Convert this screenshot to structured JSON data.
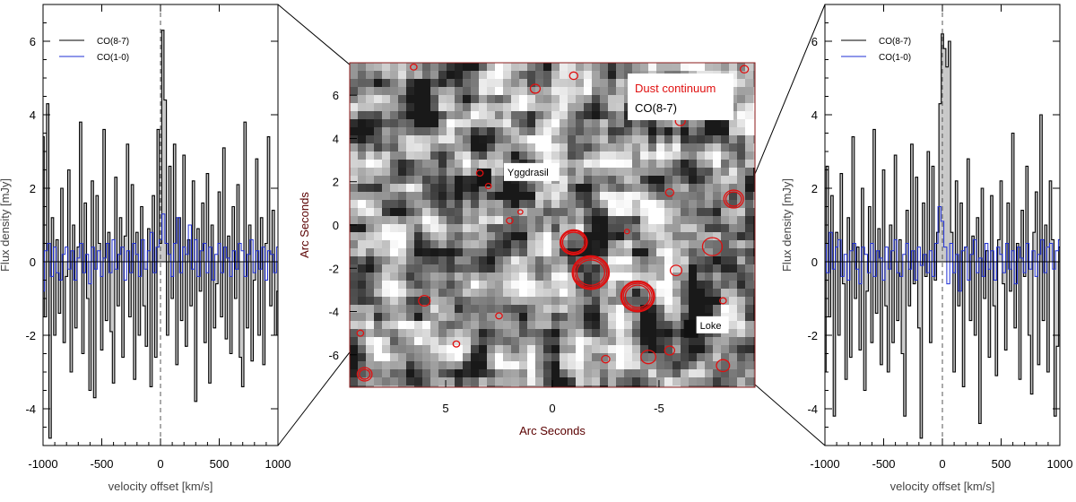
{
  "colors": {
    "co87": "#000000",
    "co10": "#1f2fd6",
    "fill": "#c8c8c8",
    "contour": "#e01010",
    "map_frame": "#8b1a1a",
    "dust_label": "#e01010"
  },
  "chart_data": [
    {
      "type": "line",
      "panel": "left-spectrum",
      "xlabel": "velocity offset [km/s]",
      "ylabel": "Flux density [mJy]",
      "xlim": [
        -1000,
        1000
      ],
      "ylim": [
        -5,
        7
      ],
      "xticks": [
        -1000,
        -500,
        0,
        500,
        1000
      ],
      "yticks": [
        -4,
        -2,
        0,
        2,
        4,
        6
      ],
      "legend_position": "top-left",
      "series": [
        {
          "name": "CO(8-7)",
          "x": [
            -1000,
            -980,
            -960,
            -940,
            -920,
            -900,
            -880,
            -860,
            -840,
            -820,
            -800,
            -780,
            -760,
            -740,
            -720,
            -700,
            -680,
            -660,
            -640,
            -620,
            -600,
            -580,
            -560,
            -540,
            -520,
            -500,
            -480,
            -460,
            -440,
            -420,
            -400,
            -380,
            -360,
            -340,
            -320,
            -300,
            -280,
            -260,
            -240,
            -220,
            -200,
            -180,
            -160,
            -140,
            -120,
            -100,
            -80,
            -60,
            -40,
            -20,
            0,
            20,
            40,
            60,
            80,
            100,
            120,
            140,
            160,
            180,
            200,
            220,
            240,
            260,
            280,
            300,
            320,
            340,
            360,
            380,
            400,
            420,
            440,
            460,
            480,
            500,
            520,
            540,
            560,
            580,
            600,
            620,
            640,
            660,
            680,
            700,
            720,
            740,
            760,
            780,
            800,
            820,
            840,
            860,
            880,
            900,
            920,
            940,
            960,
            980,
            1000
          ],
          "values": [
            3.4,
            -1.5,
            4.3,
            -4.8,
            1.2,
            -2.0,
            0.6,
            -1.4,
            2.0,
            -2.2,
            -0.4,
            2.5,
            -3.0,
            1.0,
            -1.8,
            0.4,
            3.8,
            -2.5,
            1.6,
            -1.0,
            -3.5,
            2.2,
            -3.7,
            1.8,
            0.5,
            -2.4,
            3.6,
            -1.6,
            0.8,
            -1.9,
            -3.3,
            2.3,
            -1.2,
            1.2,
            -2.6,
            0.7,
            3.2,
            -1.5,
            2.1,
            -3.2,
            0.8,
            -2.0,
            1.5,
            -1.2,
            -2.3,
            0.9,
            -3.4,
            1.8,
            -2.6,
            3.6,
            0.5,
            6.3,
            4.4,
            -2.0,
            2.6,
            -1.0,
            3.2,
            -2.8,
            1.2,
            -1.6,
            2.9,
            -2.3,
            0.6,
            -1.2,
            2.2,
            -3.8,
            0.9,
            -0.8,
            1.6,
            -2.2,
            2.4,
            -3.3,
            1.0,
            -1.8,
            -0.6,
            1.9,
            -1.5,
            3.1,
            -2.1,
            0.7,
            -2.5,
            1.5,
            -1.0,
            2.1,
            -2.6,
            -3.4,
            3.8,
            -1.8,
            1.0,
            -2.7,
            -0.5,
            2.8,
            -2.0,
            1.2,
            -2.8,
            0.5,
            3.4,
            -1.2,
            1.4,
            -2.0,
            -0.8
          ]
        },
        {
          "name": "CO(1-0)",
          "x": [
            -1000,
            -975,
            -950,
            -925,
            -900,
            -875,
            -850,
            -825,
            -800,
            -775,
            -750,
            -725,
            -700,
            -675,
            -650,
            -625,
            -600,
            -575,
            -550,
            -525,
            -500,
            -475,
            -450,
            -425,
            -400,
            -375,
            -350,
            -325,
            -300,
            -275,
            -250,
            -225,
            -200,
            -175,
            -150,
            -125,
            -100,
            -75,
            -50,
            -25,
            0,
            25,
            50,
            75,
            100,
            125,
            150,
            175,
            200,
            225,
            250,
            275,
            300,
            325,
            350,
            375,
            400,
            425,
            450,
            475,
            500,
            525,
            550,
            575,
            600,
            625,
            650,
            675,
            700,
            725,
            750,
            775,
            800,
            825,
            850,
            875,
            900,
            925,
            950,
            975,
            1000
          ],
          "values": [
            -0.8,
            0.3,
            0.5,
            -0.4,
            0.4,
            -0.3,
            -0.5,
            0.2,
            0.4,
            -0.2,
            0.3,
            -0.5,
            0.1,
            0.5,
            -0.3,
            0.2,
            -0.6,
            0.4,
            -0.2,
            0.3,
            -0.4,
            0.1,
            0.5,
            -0.3,
            0.6,
            -0.2,
            0.2,
            0.4,
            -0.5,
            0.3,
            -0.3,
            0.5,
            0.2,
            -0.4,
            0.6,
            -0.2,
            0.3,
            0.8,
            -0.3,
            0.4,
            0.6,
            1.3,
            0.5,
            0.2,
            -0.4,
            0.5,
            1.2,
            -0.3,
            0.4,
            0.2,
            1.0,
            -0.2,
            0.6,
            -0.4,
            0.3,
            0.5,
            -0.3,
            0.4,
            -0.5,
            0.2,
            0.5,
            -0.3,
            0.4,
            0.1,
            -0.4,
            0.3,
            -0.2,
            0.5,
            0.3,
            -0.4,
            0.2,
            0.6,
            -0.3,
            0.3,
            -0.2,
            0.4,
            -0.5,
            0.3,
            0.2,
            -0.3,
            0.4
          ]
        }
      ]
    },
    {
      "type": "heatmap",
      "panel": "center-map",
      "xlabel": "Arc Seconds",
      "ylabel": "Arc Seconds",
      "xlim": [
        9.5,
        -9.5
      ],
      "ylim": [
        -7.5,
        7.5
      ],
      "xticks": [
        5,
        0,
        -5
      ],
      "yticks": [
        -6,
        -4,
        -2,
        0,
        2,
        4,
        6
      ],
      "legend_position": "top-right",
      "legend": [
        {
          "label": "Dust continuum",
          "color": "#e01010"
        },
        {
          "label": "CO(8-7)",
          "color": "#000000"
        }
      ],
      "sources": [
        {
          "name": "Yggdrasil",
          "x": 3.2,
          "y": 2.2
        },
        {
          "name": "Loke",
          "x": -6.5,
          "y": -4.8
        }
      ]
    },
    {
      "type": "line",
      "panel": "right-spectrum",
      "xlabel": "velocity offset [km/s]",
      "ylabel": "Flux density [mJy]",
      "xlim": [
        -1000,
        1000
      ],
      "ylim": [
        -5,
        7
      ],
      "xticks": [
        -1000,
        -500,
        0,
        500,
        1000
      ],
      "yticks": [
        -4,
        -2,
        0,
        2,
        4,
        6
      ],
      "legend_position": "top-left",
      "series": [
        {
          "name": "CO(8-7)",
          "x": [
            -1000,
            -980,
            -960,
            -940,
            -920,
            -900,
            -880,
            -860,
            -840,
            -820,
            -800,
            -780,
            -760,
            -740,
            -720,
            -700,
            -680,
            -660,
            -640,
            -620,
            -600,
            -580,
            -560,
            -540,
            -520,
            -500,
            -480,
            -460,
            -440,
            -420,
            -400,
            -380,
            -360,
            -340,
            -320,
            -300,
            -280,
            -260,
            -240,
            -220,
            -200,
            -180,
            -160,
            -140,
            -120,
            -100,
            -80,
            -60,
            -40,
            -20,
            0,
            20,
            40,
            60,
            80,
            100,
            120,
            140,
            160,
            180,
            200,
            220,
            240,
            260,
            280,
            300,
            320,
            340,
            360,
            380,
            400,
            420,
            440,
            460,
            480,
            500,
            520,
            540,
            560,
            580,
            600,
            620,
            640,
            660,
            680,
            700,
            720,
            740,
            760,
            780,
            800,
            820,
            840,
            860,
            880,
            900,
            920,
            940,
            960,
            980,
            1000
          ],
          "values": [
            -3.0,
            2.6,
            -1.5,
            1.8,
            -4.2,
            0.8,
            -2.0,
            2.4,
            -0.6,
            -3.2,
            1.2,
            -2.6,
            3.4,
            -1.0,
            0.4,
            -2.4,
            2.0,
            -3.5,
            -0.8,
            1.5,
            -2.2,
            3.6,
            -1.4,
            0.9,
            -2.8,
            2.5,
            -1.2,
            -3.0,
            1.0,
            -2.2,
            2.9,
            -1.6,
            0.6,
            -2.5,
            -4.2,
            1.4,
            -1.2,
            3.2,
            -0.6,
            2.3,
            -1.8,
            -4.8,
            1.6,
            -0.4,
            3.0,
            -2.2,
            2.6,
            -0.5,
            0.8,
            4.3,
            6.2,
            5.8,
            5.3,
            6.0,
            0.8,
            -3.0,
            2.2,
            -1.2,
            1.6,
            -3.4,
            0.4,
            2.8,
            -1.6,
            0.7,
            -2.0,
            1.2,
            -4.4,
            2.0,
            -1.0,
            0.3,
            -2.6,
            1.8,
            -1.2,
            -3.1,
            0.6,
            2.2,
            -0.6,
            -2.4,
            1.6,
            -0.8,
            3.5,
            -1.8,
            0.5,
            -3.2,
            1.4,
            -0.4,
            2.6,
            -2.0,
            -3.6,
            0.8,
            1.9,
            -2.8,
            4.0,
            -1.6,
            1.0,
            -3.0,
            2.2,
            0.6,
            -4.2,
            -2.3,
            0.4
          ]
        },
        {
          "name": "CO(1-0)",
          "x": [
            -1000,
            -975,
            -950,
            -925,
            -900,
            -875,
            -850,
            -825,
            -800,
            -775,
            -750,
            -725,
            -700,
            -675,
            -650,
            -625,
            -600,
            -575,
            -550,
            -525,
            -500,
            -475,
            -450,
            -425,
            -400,
            -375,
            -350,
            -325,
            -300,
            -275,
            -250,
            -225,
            -200,
            -175,
            -150,
            -125,
            -100,
            -75,
            -50,
            -25,
            0,
            25,
            50,
            75,
            100,
            125,
            150,
            175,
            200,
            225,
            250,
            275,
            300,
            325,
            350,
            375,
            400,
            425,
            450,
            475,
            500,
            525,
            550,
            575,
            600,
            625,
            650,
            675,
            700,
            725,
            750,
            775,
            800,
            825,
            850,
            875,
            900,
            925,
            950,
            975,
            1000
          ],
          "values": [
            0.5,
            -0.3,
            0.8,
            -0.2,
            0.4,
            0.6,
            -0.4,
            0.2,
            -0.5,
            0.3,
            0.5,
            -0.2,
            -0.6,
            0.4,
            0.2,
            -0.3,
            0.5,
            -0.4,
            0.3,
            0.1,
            -0.5,
            0.4,
            -0.2,
            0.3,
            0.6,
            -0.3,
            -0.4,
            0.2,
            0.5,
            -0.2,
            0.3,
            -0.5,
            0.4,
            -0.1,
            0.2,
            -0.3,
            0.3,
            -0.4,
            0.5,
            1.5,
            1.1,
            0.4,
            -0.6,
            0.5,
            -0.3,
            0.2,
            -0.8,
            0.3,
            0.4,
            -0.5,
            0.2,
            0.6,
            -0.3,
            0.1,
            -0.4,
            0.5,
            -0.2,
            0.3,
            -0.5,
            0.4,
            0.2,
            -0.3,
            0.5,
            -0.2,
            0.3,
            -0.6,
            0.4,
            0.1,
            -0.3,
            0.5,
            -0.2,
            0.3,
            -0.4,
            0.2,
            0.6,
            -0.3,
            0.4,
            0.5,
            -0.2,
            0.3,
            0.6
          ]
        }
      ]
    }
  ]
}
